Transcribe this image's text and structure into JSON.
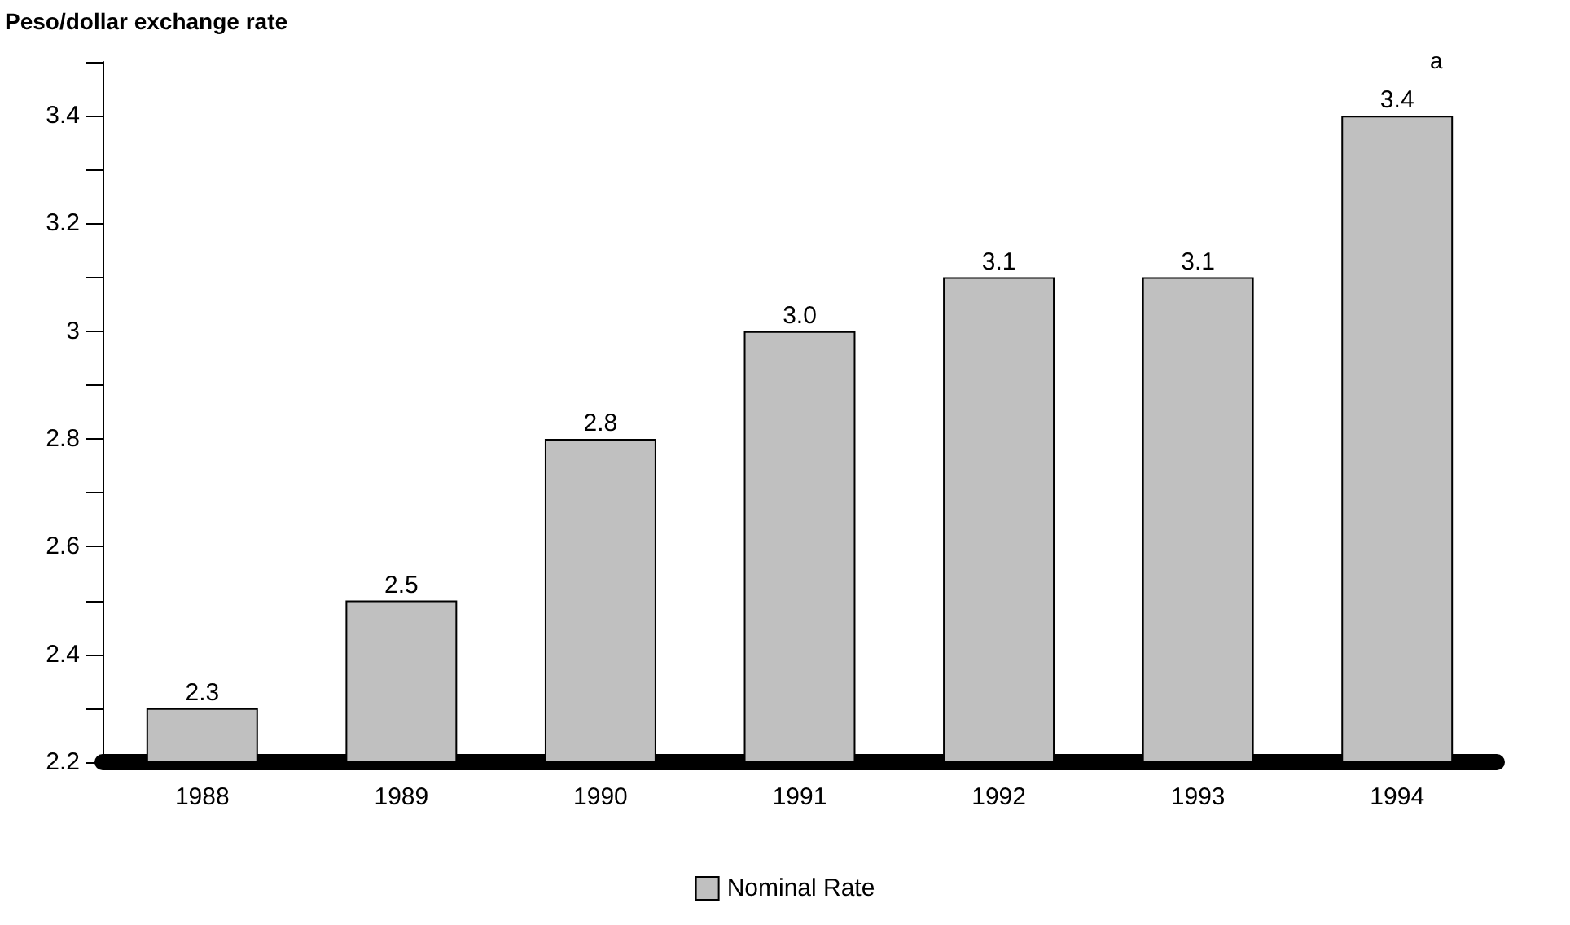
{
  "chart_data": {
    "type": "bar",
    "ylabel": "Peso/dollar exchange rate",
    "categories": [
      "1988",
      "1989",
      "1990",
      "1991",
      "1992",
      "1993",
      "1994"
    ],
    "series": [
      {
        "name": "Nominal Rate",
        "color": "#c0c0c0",
        "values": [
          2.3,
          2.5,
          2.8,
          3.0,
          3.1,
          3.1,
          3.4
        ],
        "value_labels": [
          "2.3",
          "2.5",
          "2.8",
          "3.0",
          "3.1",
          "3.1",
          "3.4"
        ]
      }
    ],
    "ylim": [
      2.2,
      3.5
    ],
    "yticks": [
      2.2,
      {
        "value": 2.3,
        "label": null
      },
      2.4,
      {
        "value": 2.5,
        "label": null
      },
      2.6,
      {
        "value": 2.7,
        "label": null
      },
      2.8,
      {
        "value": 2.9,
        "label": null
      },
      {
        "value": 3,
        "label": "3"
      },
      {
        "value": 3.1,
        "label": null
      },
      3.2,
      {
        "value": 3.3,
        "label": null
      },
      3.4,
      {
        "value": 3.5,
        "label": null
      }
    ],
    "annotations": [
      {
        "text": "a",
        "x": "1994",
        "y": 3.4
      }
    ],
    "legend": "bottom",
    "grid": false
  }
}
